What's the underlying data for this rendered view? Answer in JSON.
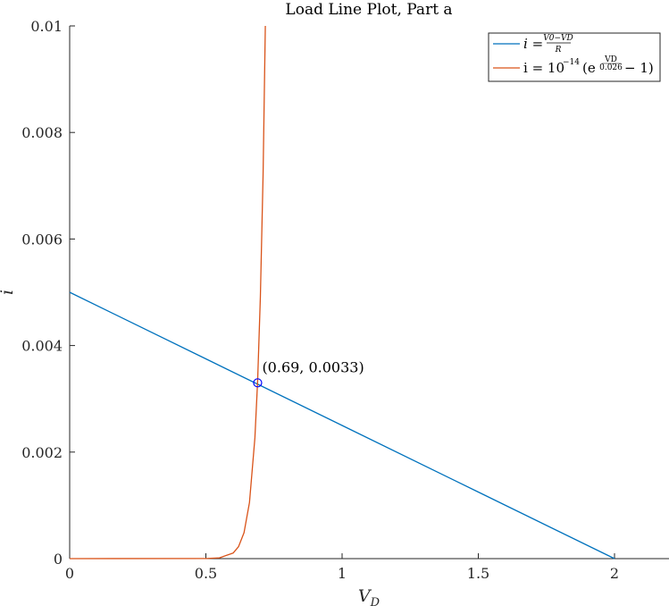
{
  "chart_data": {
    "type": "line",
    "title": "Load Line Plot, Part a",
    "xlabel": "V_D",
    "ylabel": "i",
    "xlim": [
      0,
      2.2
    ],
    "ylim": [
      0,
      0.01
    ],
    "xticks": [
      0,
      0.5,
      1,
      1.5,
      2
    ],
    "xtick_labels": [
      "0",
      "0.5",
      "1",
      "1.5",
      "2"
    ],
    "yticks": [
      0,
      0.002,
      0.004,
      0.006,
      0.008,
      0.01
    ],
    "ytick_labels": [
      "0",
      "0.002",
      "0.004",
      "0.006",
      "0.008",
      "0.01"
    ],
    "grid": false,
    "legend_position": "top-right",
    "series": [
      {
        "legend": "i = (V0 - VD) / R",
        "color": "#0072BD",
        "x": [
          0,
          0.5,
          1,
          1.5,
          2
        ],
        "y": [
          0.005,
          0.00375,
          0.0025,
          0.00125,
          0
        ]
      },
      {
        "legend": "i = 10^-14 (e^(VD/0.026) - 1)",
        "color": "#D95319",
        "x": [
          0,
          0.5,
          0.55,
          0.6,
          0.62,
          0.64,
          0.66,
          0.68,
          0.69,
          0.7,
          0.71,
          0.72
        ],
        "y": [
          0,
          2.2e-06,
          1.51e-05,
          0.0001044,
          0.000226,
          0.000487,
          0.001052,
          0.00227,
          0.00334,
          0.00491,
          0.00721,
          0.0106
        ]
      }
    ],
    "annotations": [
      {
        "text": "(0.69, 0.0033)",
        "x": 0.69,
        "y": 0.0033,
        "marker": "circle",
        "marker_color": "#0000FF"
      }
    ]
  },
  "legend": {
    "line1": {
      "lhs": "i =",
      "num": "V0−VD",
      "den": "R"
    },
    "line2": {
      "lhs": "i = 10",
      "exp": "−14",
      "open": "(e",
      "exp_num": "VD",
      "exp_den": "0.026",
      "tail": "− 1)"
    }
  }
}
